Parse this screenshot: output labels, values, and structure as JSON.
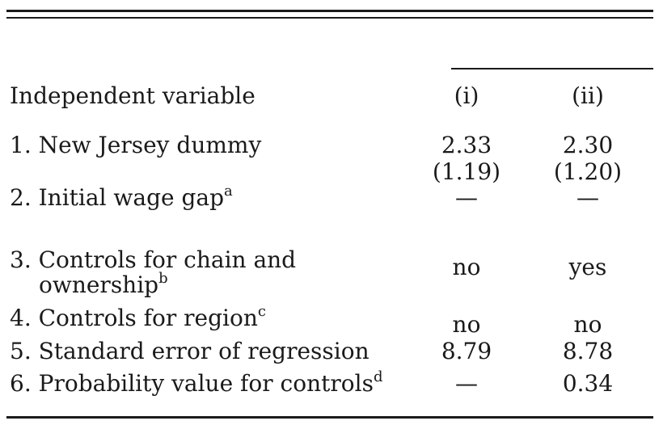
{
  "table": {
    "header": {
      "variable": "Independent variable",
      "col1": "(i)",
      "col2": "(ii)"
    },
    "rows": [
      {
        "label": "1. New Jersey dummy",
        "col1": "2.33",
        "col1_se": "(1.19)",
        "col2": "2.30",
        "col2_se": "(1.20)"
      },
      {
        "label": "2. Initial wage gap",
        "note": "a",
        "col1": "—",
        "col2": "—"
      },
      {
        "label": "3. Controls for chain and",
        "label2": "ownership",
        "note": "b",
        "col1": "no",
        "col2": "yes"
      },
      {
        "label": "4. Controls for region",
        "note": "c",
        "col1": "no",
        "col2": "no"
      },
      {
        "label": "5. Standard error of regression",
        "col1": "8.79",
        "col2": "8.78"
      },
      {
        "label": "6. Probability value for controls",
        "note": "d",
        "col1": "—",
        "col2": "0.34"
      }
    ]
  }
}
